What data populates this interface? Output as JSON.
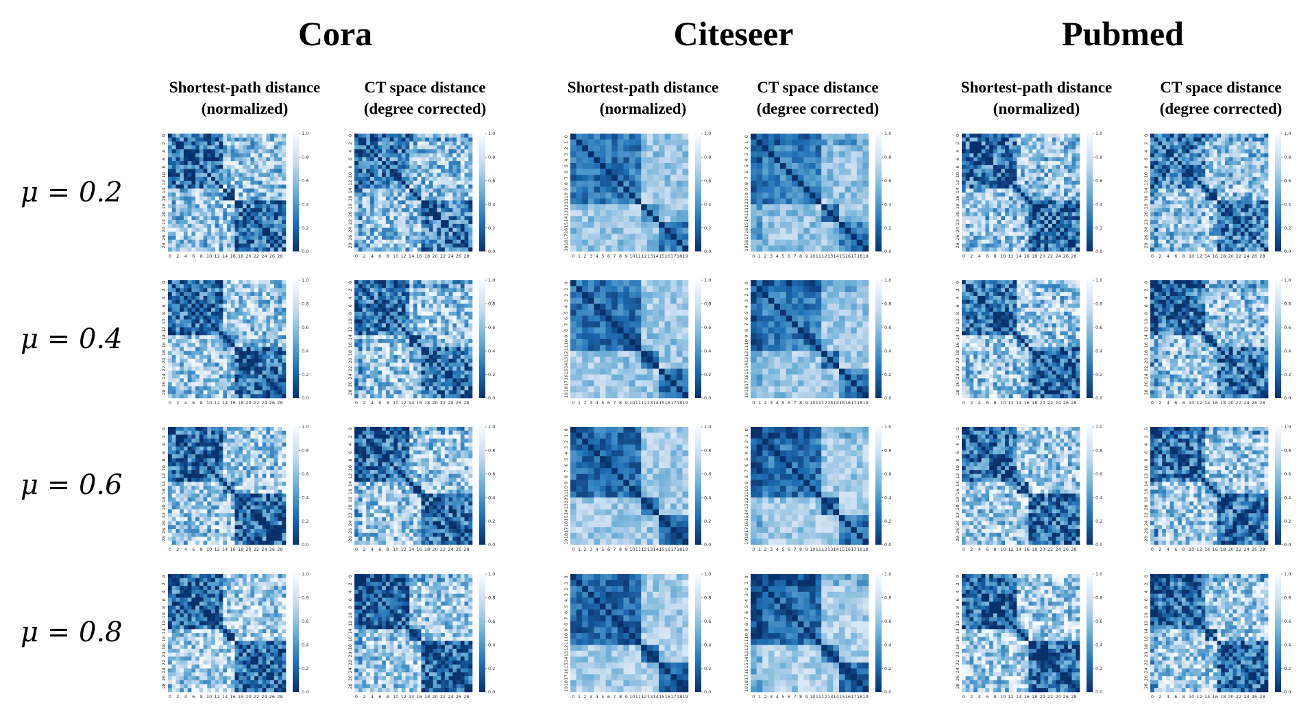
{
  "datasets": [
    {
      "name": "Cora",
      "n": 30,
      "tick_step": 2,
      "x_ticks": [
        "0",
        "2",
        "4",
        "6",
        "8",
        "10",
        "12",
        "14",
        "16",
        "18",
        "20",
        "22",
        "24",
        "26",
        "28"
      ]
    },
    {
      "name": "Citeseer",
      "n": 20,
      "tick_step": 1,
      "x_ticks": [
        "0",
        "1",
        "2",
        "3",
        "4",
        "5",
        "6",
        "7",
        "8",
        "9",
        "10",
        "11",
        "12",
        "13",
        "14",
        "15",
        "16",
        "17",
        "18",
        "19"
      ]
    },
    {
      "name": "Pubmed",
      "n": 30,
      "tick_step": 2,
      "x_ticks": [
        "0",
        "2",
        "4",
        "6",
        "8",
        "10",
        "12",
        "14",
        "16",
        "18",
        "20",
        "22",
        "24",
        "26",
        "28"
      ]
    }
  ],
  "column_titles": {
    "shortest_path": [
      "Shortest-path distance",
      "(normalized)"
    ],
    "ct_space": [
      "CT space distance",
      "(degree corrected)"
    ]
  },
  "row_labels": [
    "μ = 0.2",
    "μ = 0.4",
    "μ = 0.6",
    "μ = 0.8"
  ],
  "colorbar_ticks": [
    "0.0",
    "0.2",
    "0.4",
    "0.6",
    "0.8",
    "1.0"
  ],
  "chart_data": {
    "type": "heatmap",
    "colormap": "Blues (reversed: 0.0 = dark blue, 1.0 = white)",
    "value_range": [
      0.0,
      1.0
    ],
    "note": "Grid of 24 distance heatmaps: 3 datasets x 2 distance types x 4 values of mu",
    "panels": [
      {
        "dataset": "Cora",
        "metric": "Shortest-path distance (normalized)",
        "mu": 0.2,
        "n": 30
      },
      {
        "dataset": "Cora",
        "metric": "CT space distance (degree corrected)",
        "mu": 0.2,
        "n": 30
      },
      {
        "dataset": "Citeseer",
        "metric": "Shortest-path distance (normalized)",
        "mu": 0.2,
        "n": 20
      },
      {
        "dataset": "Citeseer",
        "metric": "CT space distance (degree corrected)",
        "mu": 0.2,
        "n": 20
      },
      {
        "dataset": "Pubmed",
        "metric": "Shortest-path distance (normalized)",
        "mu": 0.2,
        "n": 30
      },
      {
        "dataset": "Pubmed",
        "metric": "CT space distance (degree corrected)",
        "mu": 0.2,
        "n": 30
      },
      {
        "dataset": "Cora",
        "metric": "Shortest-path distance (normalized)",
        "mu": 0.4,
        "n": 30
      },
      {
        "dataset": "Cora",
        "metric": "CT space distance (degree corrected)",
        "mu": 0.4,
        "n": 30
      },
      {
        "dataset": "Citeseer",
        "metric": "Shortest-path distance (normalized)",
        "mu": 0.4,
        "n": 20
      },
      {
        "dataset": "Citeseer",
        "metric": "CT space distance (degree corrected)",
        "mu": 0.4,
        "n": 20
      },
      {
        "dataset": "Pubmed",
        "metric": "Shortest-path distance (normalized)",
        "mu": 0.4,
        "n": 30
      },
      {
        "dataset": "Pubmed",
        "metric": "CT space distance (degree corrected)",
        "mu": 0.4,
        "n": 30
      },
      {
        "dataset": "Cora",
        "metric": "Shortest-path distance (normalized)",
        "mu": 0.6,
        "n": 30
      },
      {
        "dataset": "Cora",
        "metric": "CT space distance (degree corrected)",
        "mu": 0.6,
        "n": 30
      },
      {
        "dataset": "Citeseer",
        "metric": "Shortest-path distance (normalized)",
        "mu": 0.6,
        "n": 20
      },
      {
        "dataset": "Citeseer",
        "metric": "CT space distance (degree corrected)",
        "mu": 0.6,
        "n": 20
      },
      {
        "dataset": "Pubmed",
        "metric": "Shortest-path distance (normalized)",
        "mu": 0.6,
        "n": 30
      },
      {
        "dataset": "Pubmed",
        "metric": "CT space distance (degree corrected)",
        "mu": 0.6,
        "n": 30
      },
      {
        "dataset": "Cora",
        "metric": "Shortest-path distance (normalized)",
        "mu": 0.8,
        "n": 30
      },
      {
        "dataset": "Cora",
        "metric": "CT space distance (degree corrected)",
        "mu": 0.8,
        "n": 30
      },
      {
        "dataset": "Citeseer",
        "metric": "Shortest-path distance (normalized)",
        "mu": 0.8,
        "n": 20
      },
      {
        "dataset": "Citeseer",
        "metric": "CT space distance (degree corrected)",
        "mu": 0.8,
        "n": 20
      },
      {
        "dataset": "Pubmed",
        "metric": "Shortest-path distance (normalized)",
        "mu": 0.8,
        "n": 30
      },
      {
        "dataset": "Pubmed",
        "metric": "CT space distance (degree corrected)",
        "mu": 0.8,
        "n": 30
      }
    ]
  }
}
